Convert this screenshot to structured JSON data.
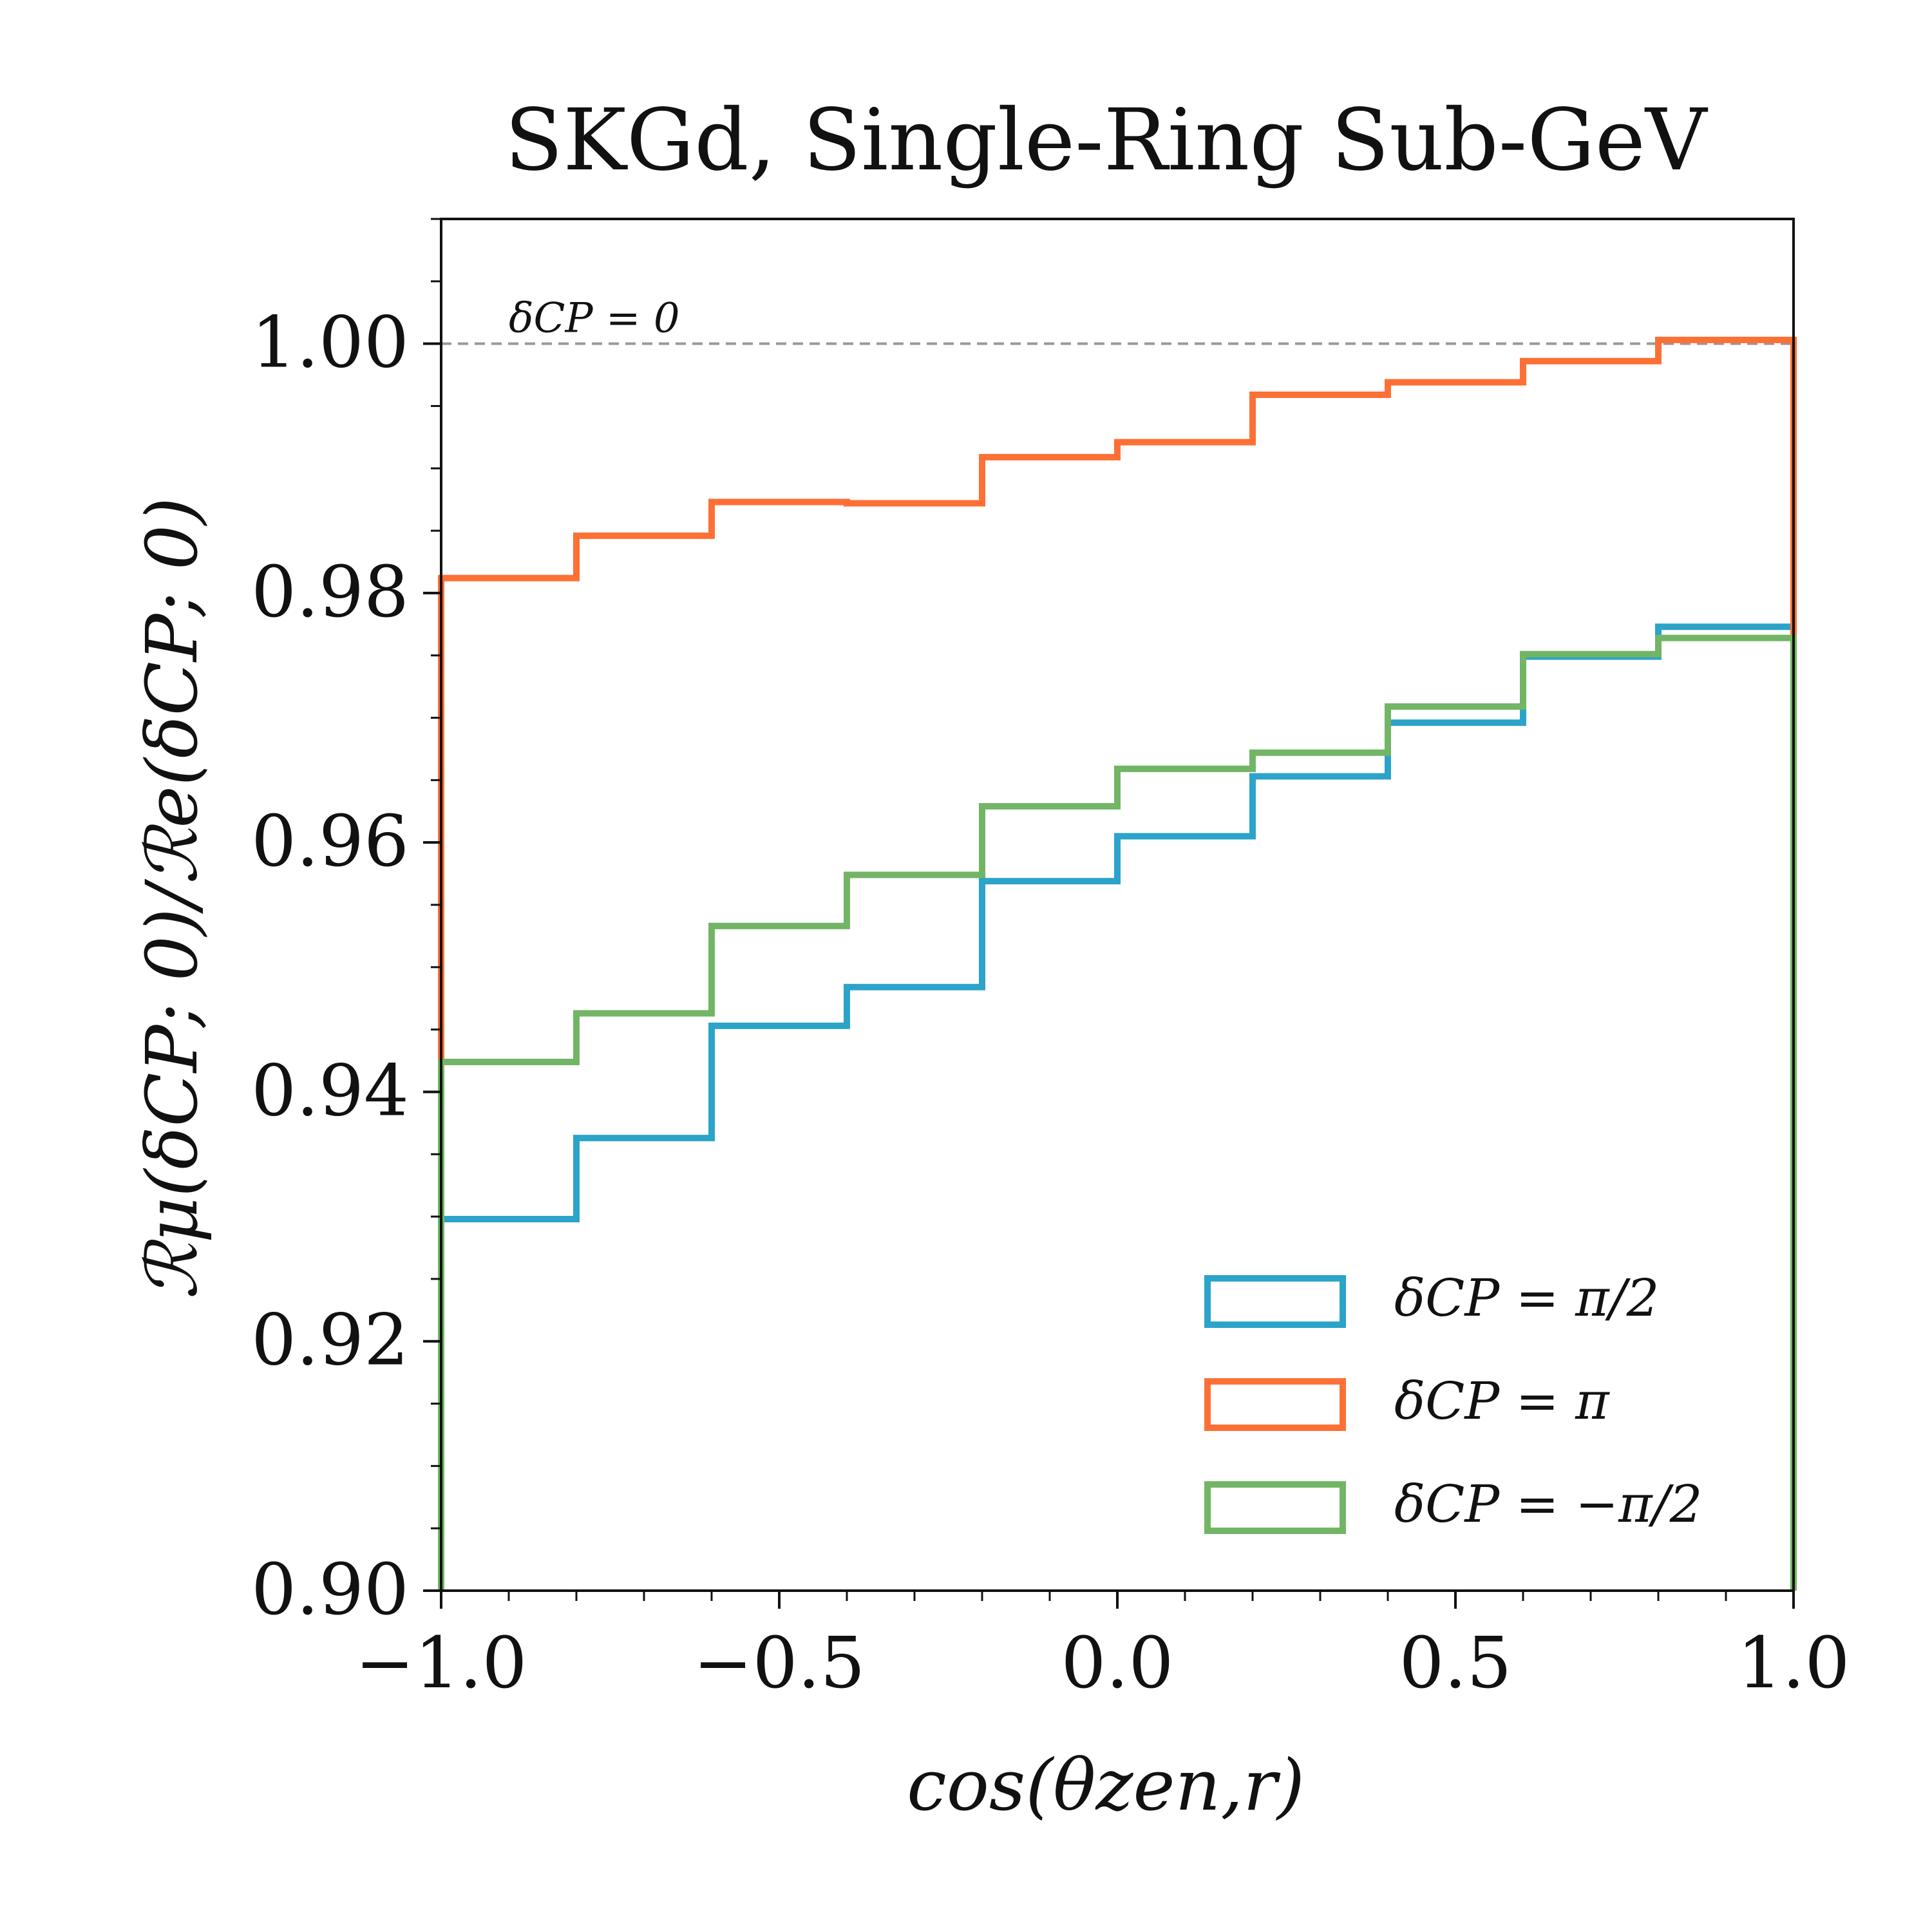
{
  "chart_data": {
    "type": "step",
    "title": "SKGd, Single-Ring Sub-GeV",
    "xlabel": "cos(θzen,r)",
    "ylabel": "ℛμ(δCP; 0)/ℛe(δCP; 0)",
    "xlim": [
      -1.0,
      1.0
    ],
    "ylim": [
      0.9,
      1.01
    ],
    "x_ticks": [
      "−1.0",
      "−0.5",
      "0.0",
      "0.5",
      "1.0"
    ],
    "y_ticks": [
      "0.90",
      "0.92",
      "0.94",
      "0.96",
      "0.98",
      "1.00"
    ],
    "bin_edges": [
      -1.0,
      -0.8,
      -0.6,
      -0.4,
      -0.2,
      0.0,
      0.2,
      0.4,
      0.6,
      0.8,
      1.0
    ],
    "reference_line": {
      "y": 1.0,
      "label": "δCP = 0",
      "style": "dashed",
      "color": "#999999"
    },
    "series": [
      {
        "name": "δCP = π/2",
        "color": "#2ca3c9",
        "values": [
          0.9298,
          0.9363,
          0.9453,
          0.9484,
          0.9569,
          0.9605,
          0.9653,
          0.9696,
          0.9749,
          0.9773
        ]
      },
      {
        "name": "δCP = π",
        "color": "#fd7035",
        "values": [
          0.9812,
          0.9846,
          0.9873,
          0.9872,
          0.9909,
          0.9921,
          0.9959,
          0.9969,
          0.9986,
          1.0003
        ]
      },
      {
        "name": "δCP = −π/2",
        "color": "#72b565",
        "values": [
          0.9424,
          0.9463,
          0.9533,
          0.9574,
          0.9629,
          0.9659,
          0.9672,
          0.9709,
          0.9751,
          0.9764
        ]
      }
    ],
    "grid": false,
    "legend_position": "lower-right"
  }
}
